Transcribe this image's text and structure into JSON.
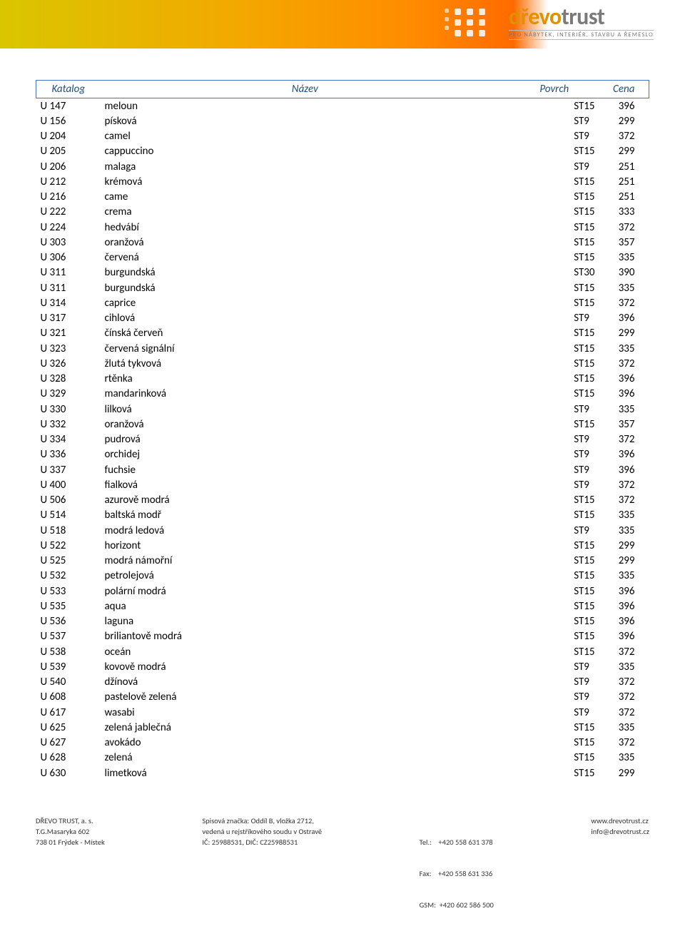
{
  "brand": {
    "logo_line1_accent": "dřevo",
    "logo_line1_rest": "trust",
    "logo_tagline": "PRO NÁBYTEK, INTERIÉR, STAVBU A ŘEMESLO"
  },
  "table": {
    "headers": {
      "c1": "Katalog",
      "c2": "Název",
      "c3": "Povrch",
      "c4": "Cena"
    },
    "header_color": "#1f4e79",
    "border_color": "#4472c4",
    "rows": [
      {
        "cat": "U 147",
        "name": "meloun",
        "pov": "ST15",
        "price": "396"
      },
      {
        "cat": "U 156",
        "name": "písková",
        "pov": "ST9",
        "price": "299"
      },
      {
        "cat": "U 204",
        "name": "camel",
        "pov": "ST9",
        "price": "372"
      },
      {
        "cat": "U 205",
        "name": "cappuccino",
        "pov": "ST15",
        "price": "299"
      },
      {
        "cat": "U 206",
        "name": "malaga",
        "pov": "ST9",
        "price": "251"
      },
      {
        "cat": "U 212",
        "name": "krémová",
        "pov": "ST15",
        "price": "251"
      },
      {
        "cat": "U 216",
        "name": "came",
        "pov": "ST15",
        "price": "251"
      },
      {
        "cat": "U 222",
        "name": "crema",
        "pov": "ST15",
        "price": "333"
      },
      {
        "cat": "U 224",
        "name": "hedvábí",
        "pov": "ST15",
        "price": "372"
      },
      {
        "cat": "U 303",
        "name": "oranžová",
        "pov": "ST15",
        "price": "357"
      },
      {
        "cat": "U 306",
        "name": "červená",
        "pov": "ST15",
        "price": "335"
      },
      {
        "cat": "U 311",
        "name": "burgundská",
        "pov": "ST30",
        "price": "390"
      },
      {
        "cat": "U 311",
        "name": "burgundská",
        "pov": "ST15",
        "price": "335"
      },
      {
        "cat": "U 314",
        "name": "caprice",
        "pov": "ST15",
        "price": "372"
      },
      {
        "cat": "U 317",
        "name": "cihlová",
        "pov": "ST9",
        "price": "396"
      },
      {
        "cat": "U 321",
        "name": "čínská červeň",
        "pov": "ST15",
        "price": "299"
      },
      {
        "cat": "U 323",
        "name": "červená signální",
        "pov": "ST15",
        "price": "335"
      },
      {
        "cat": "U 326",
        "name": "žlutá tykvová",
        "pov": "ST15",
        "price": "372"
      },
      {
        "cat": "U 328",
        "name": "rtěnka",
        "pov": "ST15",
        "price": "396"
      },
      {
        "cat": "U 329",
        "name": "mandarinková",
        "pov": "ST15",
        "price": "396"
      },
      {
        "cat": "U 330",
        "name": "lilková",
        "pov": "ST9",
        "price": "335"
      },
      {
        "cat": "U 332",
        "name": "oranžová",
        "pov": "ST15",
        "price": "357"
      },
      {
        "cat": "U 334",
        "name": "pudrová",
        "pov": "ST9",
        "price": "372"
      },
      {
        "cat": "U 336",
        "name": "orchidej",
        "pov": "ST9",
        "price": "396"
      },
      {
        "cat": "U 337",
        "name": "fuchsie",
        "pov": "ST9",
        "price": "396"
      },
      {
        "cat": "U 400",
        "name": "fialková",
        "pov": "ST9",
        "price": "372"
      },
      {
        "cat": "U 506",
        "name": "azurově modrá",
        "pov": "ST15",
        "price": "372"
      },
      {
        "cat": "U 514",
        "name": "baltská modř",
        "pov": "ST15",
        "price": "335"
      },
      {
        "cat": "U 518",
        "name": "modrá ledová",
        "pov": "ST9",
        "price": "335"
      },
      {
        "cat": "U 522",
        "name": "horizont",
        "pov": "ST15",
        "price": "299"
      },
      {
        "cat": "U 525",
        "name": "modrá námořní",
        "pov": "ST15",
        "price": "299"
      },
      {
        "cat": "U 532",
        "name": "petrolejová",
        "pov": "ST15",
        "price": "335"
      },
      {
        "cat": "U 533",
        "name": "polární modrá",
        "pov": "ST15",
        "price": "396"
      },
      {
        "cat": "U 535",
        "name": "aqua",
        "pov": "ST15",
        "price": "396"
      },
      {
        "cat": "U 536",
        "name": "laguna",
        "pov": "ST15",
        "price": "396"
      },
      {
        "cat": "U 537",
        "name": "briliantově modrá",
        "pov": "ST15",
        "price": "396"
      },
      {
        "cat": "U 538",
        "name": "oceán",
        "pov": "ST15",
        "price": "372"
      },
      {
        "cat": "U 539",
        "name": "kovově modrá",
        "pov": "ST9",
        "price": "335"
      },
      {
        "cat": "U 540",
        "name": "džínová",
        "pov": "ST9",
        "price": "372"
      },
      {
        "cat": "U 608",
        "name": "pastelově zelená",
        "pov": "ST9",
        "price": "372"
      },
      {
        "cat": "U 617",
        "name": "wasabi",
        "pov": "ST9",
        "price": "372"
      },
      {
        "cat": "U 625",
        "name": "zelená jablečná",
        "pov": "ST15",
        "price": "335"
      },
      {
        "cat": "U 627",
        "name": "avokádo",
        "pov": "ST15",
        "price": "372"
      },
      {
        "cat": "U 628",
        "name": "zelená",
        "pov": "ST15",
        "price": "335"
      },
      {
        "cat": "U 630",
        "name": "limetková",
        "pov": "ST15",
        "price": "299"
      }
    ]
  },
  "footer": {
    "c1": {
      "l1": "DŘEVO TRUST, a. s.",
      "l2": "T.G.Masaryka 602",
      "l3": "738 01 Frýdek - Místek"
    },
    "c2": {
      "l1": "Spisová značka: Oddíl B, vložka 2712,",
      "l2": "vedená u rejstříkového soudu v Ostravě",
      "l3": "IČ: 25988531, DIČ: CZ25988531"
    },
    "c3": {
      "l1": "Tel.:    +420 558 631 378",
      "l2": "Fax:    +420 558 631 336",
      "l3": "GSM:  +420 602 586 500"
    },
    "c4": {
      "l1": "www.drevotrust.cz",
      "l2": "info@drevotrust.cz"
    }
  }
}
